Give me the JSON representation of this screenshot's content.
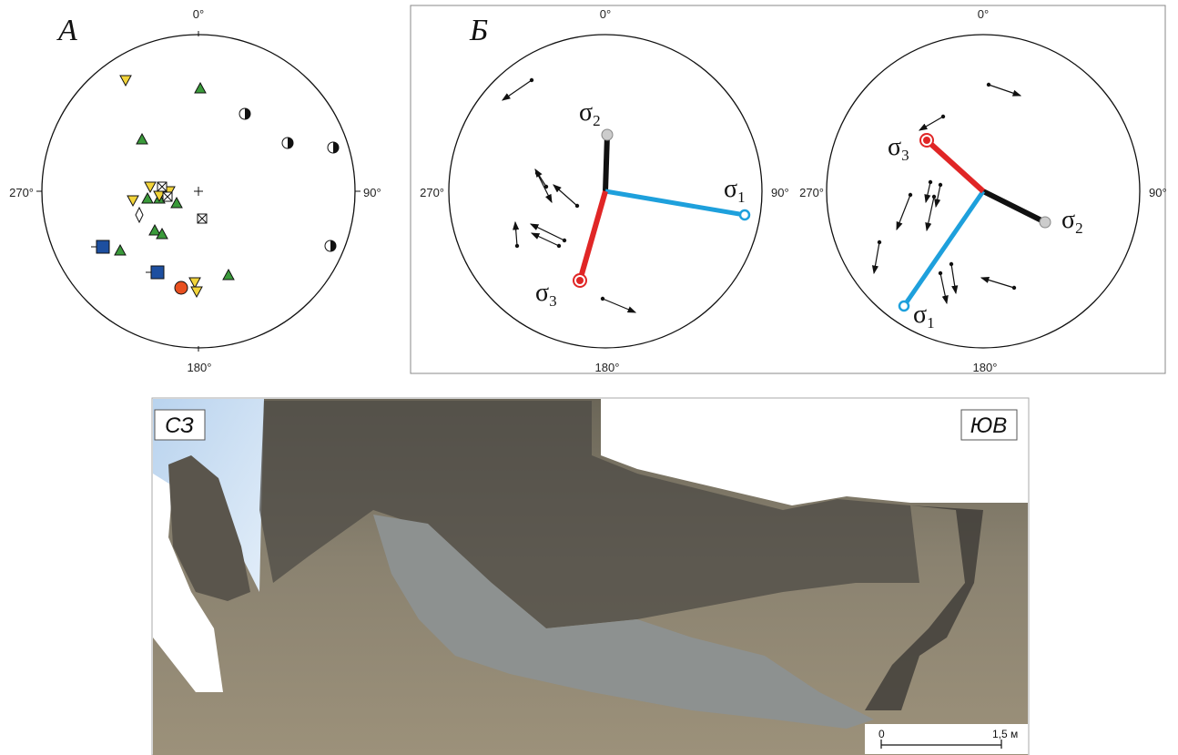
{
  "panel_a": {
    "label": "А",
    "north": "0°",
    "east": "90°",
    "south": "180°",
    "west": "270°"
  },
  "panel_b": {
    "label": "Б",
    "left_net": {
      "north": "0°",
      "east": "90°",
      "south": "180°",
      "west": "270°",
      "sigma1": {
        "symbol": "σ",
        "index": "1"
      },
      "sigma2": {
        "symbol": "σ",
        "index": "2"
      },
      "sigma3": {
        "symbol": "σ",
        "index": "3"
      }
    },
    "right_net": {
      "north": "0°",
      "east": "90°",
      "south": "180°",
      "west": "270°",
      "sigma1": {
        "symbol": "σ",
        "index": "1"
      },
      "sigma2": {
        "symbol": "σ",
        "index": "2"
      },
      "sigma3": {
        "symbol": "σ",
        "index": "3"
      }
    }
  },
  "photo": {
    "left_label": "СЗ",
    "right_label": "ЮВ",
    "scale_start": "0",
    "scale_end": "1,5 м"
  }
}
